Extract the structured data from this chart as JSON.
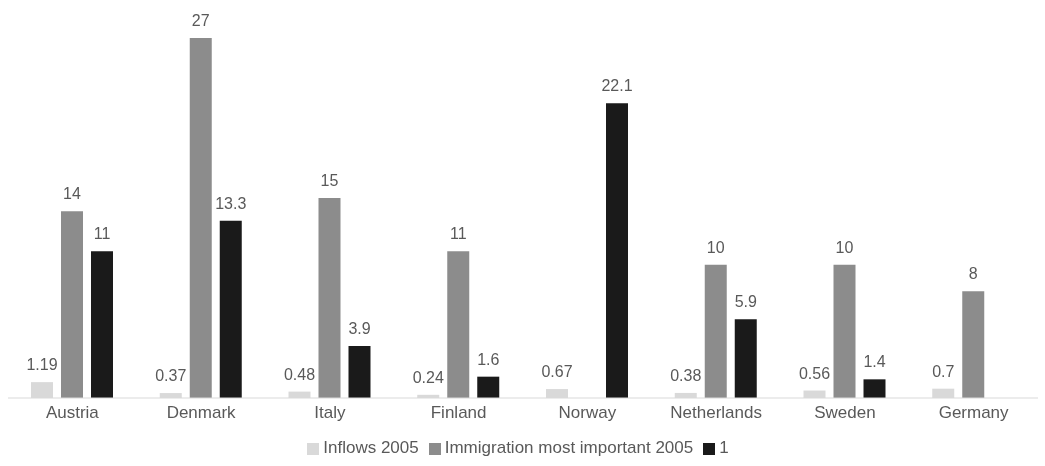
{
  "chart_data": {
    "type": "bar",
    "categories": [
      "Austria",
      "Denmark",
      "Italy",
      "Finland",
      "Norway",
      "Netherlands",
      "Sweden",
      "Germany"
    ],
    "series": [
      {
        "name": "Inflows 2005",
        "color": "#d9d9d9",
        "values": [
          1.19,
          0.37,
          0.48,
          0.24,
          0.67,
          0.38,
          0.56,
          0.7
        ]
      },
      {
        "name": "Immigration most important 2005",
        "color": "#8c8c8c",
        "values": [
          14,
          27,
          15,
          11,
          null,
          10,
          10,
          8
        ]
      },
      {
        "name": "1",
        "color": "#1a1a1a",
        "values": [
          11,
          13.3,
          3.9,
          1.6,
          22.1,
          5.9,
          1.4,
          null
        ]
      }
    ],
    "data_labels": true,
    "grid": false,
    "legend": "bottom"
  }
}
